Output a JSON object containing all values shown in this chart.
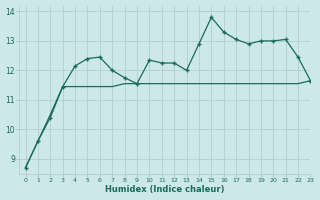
{
  "xlabel": "Humidex (Indice chaleur)",
  "background_color": "#cce8e8",
  "line_color": "#1a6b5a",
  "xlim": [
    -0.5,
    23
  ],
  "ylim": [
    8.5,
    14.2
  ],
  "yticks": [
    9,
    10,
    11,
    12,
    13,
    14
  ],
  "xticks": [
    0,
    1,
    2,
    3,
    4,
    5,
    6,
    7,
    8,
    9,
    10,
    11,
    12,
    13,
    14,
    15,
    16,
    17,
    18,
    19,
    20,
    21,
    22,
    23
  ],
  "series1_x": [
    0,
    1,
    2,
    3,
    4,
    5,
    6,
    7,
    8,
    9,
    10,
    11,
    12,
    13,
    14,
    15,
    16,
    17,
    18,
    19,
    20,
    21,
    22,
    23
  ],
  "series1_y": [
    8.7,
    9.6,
    10.4,
    11.45,
    12.15,
    12.4,
    12.45,
    12.0,
    11.75,
    11.55,
    12.35,
    12.25,
    12.25,
    12.0,
    12.9,
    13.8,
    13.3,
    13.05,
    12.9,
    13.0,
    13.0,
    13.05,
    12.45,
    11.65
  ],
  "series2_x": [
    0,
    1,
    2,
    3,
    4,
    5,
    6,
    7,
    8,
    9,
    10,
    11,
    12,
    13,
    14,
    15,
    16,
    17,
    18,
    19,
    20,
    21,
    22,
    23
  ],
  "series2_y": [
    8.7,
    9.6,
    10.5,
    11.45,
    11.45,
    11.45,
    11.45,
    11.45,
    11.55,
    11.55,
    11.55,
    11.55,
    11.55,
    11.55,
    11.55,
    11.55,
    11.55,
    11.55,
    11.55,
    11.55,
    11.55,
    11.55,
    11.55,
    11.65
  ],
  "grid_color": "#b0c8c8",
  "font_color": "#1a6b5a",
  "axis_bg": "#cce8e8"
}
